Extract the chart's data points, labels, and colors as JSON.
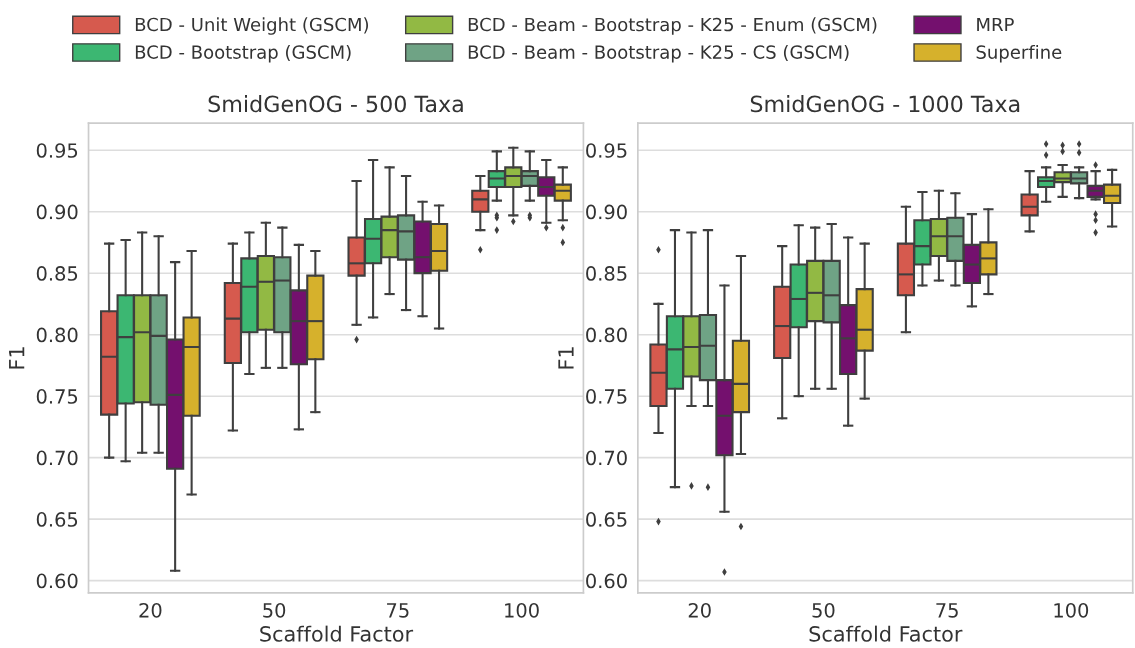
{
  "chart_data": [
    {
      "type": "box",
      "title": "SmidGenOG - 500 Taxa",
      "xlabel": "Scaffold Factor",
      "ylabel": "F1",
      "categories": [
        "20",
        "50",
        "75",
        "100"
      ],
      "ylim": [
        0.59,
        0.972
      ],
      "yticks": [
        {
          "value": 0.6,
          "label": "0.60"
        },
        {
          "value": 0.65,
          "label": "0.65"
        },
        {
          "value": 0.7,
          "label": "0.70"
        },
        {
          "value": 0.75,
          "label": "0.75"
        },
        {
          "value": 0.8,
          "label": "0.80"
        },
        {
          "value": 0.85,
          "label": "0.85"
        },
        {
          "value": 0.9,
          "label": "0.90"
        },
        {
          "value": 0.95,
          "label": "0.95"
        }
      ],
      "grid": "y",
      "legend": "top",
      "series": [
        {
          "name": "BCD - Unit Weight (GSCM)",
          "color": "#d65a4e",
          "boxes": [
            {
              "low": 0.7,
              "q1": 0.735,
              "median": 0.782,
              "q3": 0.819,
              "high": 0.874
            },
            {
              "low": 0.722,
              "q1": 0.777,
              "median": 0.813,
              "q3": 0.842,
              "high": 0.874
            },
            {
              "low": 0.808,
              "q1": 0.848,
              "median": 0.858,
              "q3": 0.879,
              "high": 0.925,
              "outliers": [
                0.796
              ]
            },
            {
              "low": 0.885,
              "q1": 0.9,
              "median": 0.91,
              "q3": 0.917,
              "high": 0.929,
              "outliers": [
                0.869
              ]
            }
          ]
        },
        {
          "name": "BCD - Bootstrap (GSCM)",
          "color": "#3cb772",
          "boxes": [
            {
              "low": 0.697,
              "q1": 0.744,
              "median": 0.798,
              "q3": 0.832,
              "high": 0.877
            },
            {
              "low": 0.768,
              "q1": 0.802,
              "median": 0.839,
              "q3": 0.862,
              "high": 0.883
            },
            {
              "low": 0.814,
              "q1": 0.858,
              "median": 0.878,
              "q3": 0.894,
              "high": 0.942
            },
            {
              "low": 0.909,
              "q1": 0.92,
              "median": 0.927,
              "q3": 0.933,
              "high": 0.949,
              "outliers": [
                0.897,
                0.895,
                0.885
              ]
            }
          ]
        },
        {
          "name": "BCD - Beam - Bootstrap - K25 - Enum (GSCM)",
          "color": "#92b944",
          "boxes": [
            {
              "low": 0.704,
              "q1": 0.745,
              "median": 0.802,
              "q3": 0.832,
              "high": 0.883
            },
            {
              "low": 0.773,
              "q1": 0.804,
              "median": 0.843,
              "q3": 0.864,
              "high": 0.891
            },
            {
              "low": 0.833,
              "q1": 0.863,
              "median": 0.885,
              "q3": 0.896,
              "high": 0.936
            },
            {
              "low": 0.897,
              "q1": 0.92,
              "median": 0.929,
              "q3": 0.936,
              "high": 0.952,
              "outliers": [
                0.892
              ]
            }
          ]
        },
        {
          "name": "BCD - Beam - Bootstrap - K25 - CS (GSCM)",
          "color": "#6fa385",
          "boxes": [
            {
              "low": 0.704,
              "q1": 0.743,
              "median": 0.799,
              "q3": 0.832,
              "high": 0.88
            },
            {
              "low": 0.773,
              "q1": 0.802,
              "median": 0.844,
              "q3": 0.863,
              "high": 0.887
            },
            {
              "low": 0.82,
              "q1": 0.861,
              "median": 0.884,
              "q3": 0.897,
              "high": 0.929
            },
            {
              "low": 0.909,
              "q1": 0.921,
              "median": 0.929,
              "q3": 0.933,
              "high": 0.949,
              "outliers": [
                0.897,
                0.895
              ]
            }
          ]
        },
        {
          "name": "MRP",
          "color": "#74106e",
          "boxes": [
            {
              "low": 0.608,
              "q1": 0.691,
              "median": 0.751,
              "q3": 0.796,
              "high": 0.859
            },
            {
              "low": 0.723,
              "q1": 0.776,
              "median": 0.811,
              "q3": 0.836,
              "high": 0.873
            },
            {
              "low": 0.815,
              "q1": 0.85,
              "median": 0.863,
              "q3": 0.892,
              "high": 0.908
            },
            {
              "low": 0.891,
              "q1": 0.913,
              "median": 0.92,
              "q3": 0.928,
              "high": 0.942,
              "outliers": [
                0.887
              ]
            }
          ]
        },
        {
          "name": "Superfine",
          "color": "#d6b12c",
          "boxes": [
            {
              "low": 0.67,
              "q1": 0.734,
              "median": 0.79,
              "q3": 0.814,
              "high": 0.868
            },
            {
              "low": 0.737,
              "q1": 0.78,
              "median": 0.811,
              "q3": 0.848,
              "high": 0.868
            },
            {
              "low": 0.805,
              "q1": 0.852,
              "median": 0.868,
              "q3": 0.89,
              "high": 0.905
            },
            {
              "low": 0.893,
              "q1": 0.909,
              "median": 0.917,
              "q3": 0.922,
              "high": 0.936,
              "outliers": [
                0.887,
                0.875
              ]
            }
          ]
        }
      ]
    },
    {
      "type": "box",
      "title": "SmidGenOG - 1000 Taxa",
      "xlabel": "Scaffold Factor",
      "ylabel": "F1",
      "categories": [
        "20",
        "50",
        "75",
        "100"
      ],
      "ylim": [
        0.59,
        0.972
      ],
      "yticks": [
        {
          "value": 0.6,
          "label": "0.60"
        },
        {
          "value": 0.65,
          "label": "0.65"
        },
        {
          "value": 0.7,
          "label": "0.70"
        },
        {
          "value": 0.75,
          "label": "0.75"
        },
        {
          "value": 0.8,
          "label": "0.80"
        },
        {
          "value": 0.85,
          "label": "0.85"
        },
        {
          "value": 0.9,
          "label": "0.90"
        },
        {
          "value": 0.95,
          "label": "0.95"
        }
      ],
      "grid": "y",
      "series": [
        {
          "color": "#d65a4e",
          "boxes": [
            {
              "low": 0.72,
              "q1": 0.742,
              "median": 0.769,
              "q3": 0.792,
              "high": 0.825,
              "outliers": [
                0.869,
                0.648
              ]
            },
            {
              "low": 0.732,
              "q1": 0.781,
              "median": 0.807,
              "q3": 0.839,
              "high": 0.872
            },
            {
              "low": 0.802,
              "q1": 0.832,
              "median": 0.849,
              "q3": 0.874,
              "high": 0.904
            },
            {
              "low": 0.884,
              "q1": 0.897,
              "median": 0.904,
              "q3": 0.914,
              "high": 0.933
            }
          ]
        },
        {
          "color": "#3cb772",
          "boxes": [
            {
              "low": 0.676,
              "q1": 0.756,
              "median": 0.788,
              "q3": 0.815,
              "high": 0.885
            },
            {
              "low": 0.75,
              "q1": 0.806,
              "median": 0.829,
              "q3": 0.857,
              "high": 0.889
            },
            {
              "low": 0.84,
              "q1": 0.857,
              "median": 0.872,
              "q3": 0.893,
              "high": 0.916
            },
            {
              "low": 0.908,
              "q1": 0.92,
              "median": 0.925,
              "q3": 0.928,
              "high": 0.936,
              "outliers": [
                0.955,
                0.946
              ]
            }
          ]
        },
        {
          "color": "#92b944",
          "boxes": [
            {
              "low": 0.742,
              "q1": 0.766,
              "median": 0.79,
              "q3": 0.815,
              "high": 0.883,
              "outliers": [
                0.677
              ]
            },
            {
              "low": 0.756,
              "q1": 0.811,
              "median": 0.834,
              "q3": 0.86,
              "high": 0.887
            },
            {
              "low": 0.844,
              "q1": 0.864,
              "median": 0.88,
              "q3": 0.894,
              "high": 0.917
            },
            {
              "low": 0.912,
              "q1": 0.924,
              "median": 0.927,
              "q3": 0.932,
              "high": 0.938,
              "outliers": [
                0.954,
                0.949
              ]
            }
          ]
        },
        {
          "color": "#6fa385",
          "boxes": [
            {
              "low": 0.742,
              "q1": 0.763,
              "median": 0.791,
              "q3": 0.816,
              "high": 0.885,
              "outliers": [
                0.676
              ]
            },
            {
              "low": 0.756,
              "q1": 0.81,
              "median": 0.832,
              "q3": 0.86,
              "high": 0.89
            },
            {
              "low": 0.84,
              "q1": 0.86,
              "median": 0.88,
              "q3": 0.895,
              "high": 0.915
            },
            {
              "low": 0.911,
              "q1": 0.923,
              "median": 0.927,
              "q3": 0.932,
              "high": 0.936,
              "outliers": [
                0.955,
                0.948
              ]
            }
          ]
        },
        {
          "color": "#74106e",
          "boxes": [
            {
              "low": 0.656,
              "q1": 0.702,
              "median": 0.734,
              "q3": 0.763,
              "high": 0.84,
              "outliers": [
                0.607
              ]
            },
            {
              "low": 0.726,
              "q1": 0.768,
              "median": 0.797,
              "q3": 0.824,
              "high": 0.879
            },
            {
              "low": 0.823,
              "q1": 0.842,
              "median": 0.857,
              "q3": 0.873,
              "high": 0.898
            },
            {
              "low": 0.91,
              "q1": 0.912,
              "median": 0.917,
              "q3": 0.921,
              "high": 0.933,
              "outliers": [
                0.938,
                0.898,
                0.893,
                0.883
              ]
            }
          ]
        },
        {
          "color": "#d6b12c",
          "boxes": [
            {
              "low": 0.703,
              "q1": 0.737,
              "median": 0.76,
              "q3": 0.795,
              "high": 0.864,
              "outliers": [
                0.644
              ]
            },
            {
              "low": 0.748,
              "q1": 0.787,
              "median": 0.804,
              "q3": 0.837,
              "high": 0.874
            },
            {
              "low": 0.833,
              "q1": 0.849,
              "median": 0.862,
              "q3": 0.875,
              "high": 0.902
            },
            {
              "low": 0.888,
              "q1": 0.907,
              "median": 0.913,
              "q3": 0.922,
              "high": 0.934
            }
          ]
        }
      ]
    }
  ]
}
